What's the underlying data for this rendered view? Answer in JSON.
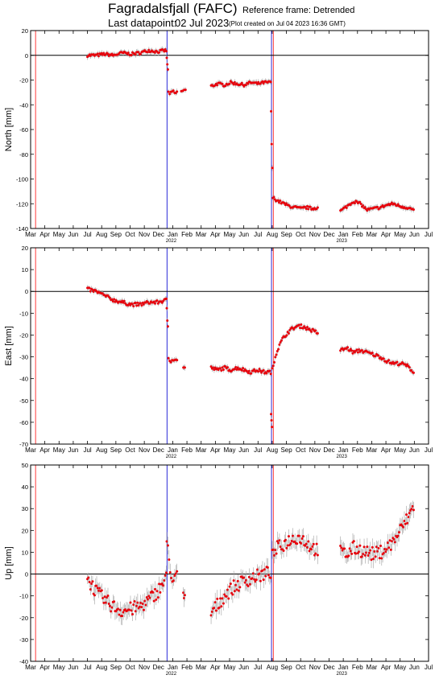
{
  "header": {
    "station_title": "Fagradalsfjall (FAFC)",
    "reference_frame": "Reference frame: Detrended",
    "last_datapoint_label": "Last datapoint:",
    "last_datapoint_value": "02 Jul 2023",
    "plot_created": "(Plot created on Jul 04 2023 16:36 GMT)"
  },
  "colors": {
    "points": "#e8000b",
    "error_bars": "#a0a0a0",
    "zero_line": "#000000",
    "red_marker": "#ff3b3b",
    "blue_marker": "#2a2ad8"
  },
  "chart_data": {
    "type": "scatter",
    "x_axis": {
      "months": [
        "Mar",
        "Apr",
        "May",
        "Jun",
        "Jul",
        "Aug",
        "Sep",
        "Oct",
        "Nov",
        "Dec",
        "Jan",
        "Feb",
        "Mar",
        "Apr",
        "May",
        "Jun",
        "Jul",
        "Aug",
        "Sep",
        "Oct",
        "Nov",
        "Dec",
        "Jan",
        "Feb",
        "Mar",
        "Apr",
        "May",
        "Jun",
        "Jul"
      ],
      "year_labels": [
        {
          "label": "2022",
          "month_index": 10
        },
        {
          "label": "2023",
          "month_index": 22
        }
      ]
    },
    "vertical_lines": [
      {
        "color": "red",
        "month_position": 0.35
      },
      {
        "color": "blue",
        "month_position": 9.6
      },
      {
        "color": "blue",
        "month_position": 16.95
      },
      {
        "color": "red",
        "month_position": 17.08
      }
    ],
    "panels": [
      {
        "id": "north",
        "ylabel": "North [mm]",
        "ylim": [
          -140,
          20
        ],
        "yticks": [
          20,
          0,
          -20,
          -40,
          -60,
          -80,
          -100,
          -120,
          -140
        ],
        "segments": [
          {
            "from": 4.0,
            "to": 9.55,
            "values": [
              0,
              0,
              1,
              0,
              2,
              1,
              2,
              4,
              3,
              4
            ]
          },
          {
            "from": 9.58,
            "to": 9.66,
            "values": [
              -3,
              -7,
              -12
            ]
          },
          {
            "from": 9.7,
            "to": 10.3,
            "values": [
              -30,
              -31,
              -29,
              -31,
              -30
            ]
          },
          {
            "from": 10.6,
            "to": 10.9,
            "values": [
              -29,
              -28
            ]
          },
          {
            "from": 12.7,
            "to": 16.9,
            "values": [
              -25,
              -23,
              -24,
              -22,
              -23,
              -24,
              -22,
              -23,
              -22,
              -22
            ]
          },
          {
            "from": 16.92,
            "to": 17.0,
            "values": [
              -45,
              -72,
              -92
            ]
          },
          {
            "from": 17.05,
            "to": 20.2,
            "values": [
              -115,
              -118,
              -120,
              -122,
              -123,
              -124,
              -123,
              -124,
              -123
            ]
          },
          {
            "from": 21.8,
            "to": 26.95,
            "values": [
              -126,
              -122,
              -118,
              -120,
              -125,
              -124,
              -123,
              -121,
              -120,
              -122,
              -123,
              -125
            ]
          }
        ]
      },
      {
        "id": "east",
        "ylabel": "East [mm]",
        "ylim": [
          -70,
          20
        ],
        "yticks": [
          20,
          10,
          0,
          -10,
          -20,
          -30,
          -40,
          -50,
          -60,
          -70
        ],
        "segments": [
          {
            "from": 4.0,
            "to": 9.55,
            "values": [
              1,
              0,
              -2,
              -4,
              -5,
              -6,
              -6,
              -5,
              -5,
              -4
            ]
          },
          {
            "from": 9.58,
            "to": 9.66,
            "values": [
              -8,
              -13,
              -16
            ]
          },
          {
            "from": 9.7,
            "to": 10.3,
            "values": [
              -30,
              -32,
              -31,
              -32,
              -31
            ]
          },
          {
            "from": 10.75,
            "to": 10.85,
            "values": [
              -35
            ]
          },
          {
            "from": 12.7,
            "to": 16.9,
            "values": [
              -35,
              -36,
              -35,
              -36,
              -35,
              -36,
              -37,
              -36,
              -37,
              -37
            ]
          },
          {
            "from": 16.92,
            "to": 16.98,
            "values": [
              -57,
              -62
            ]
          },
          {
            "from": 17.0,
            "to": 20.2,
            "values": [
              -35,
              -27,
              -22,
              -19,
              -17,
              -16,
              -16,
              -17,
              -18,
              -19
            ]
          },
          {
            "from": 21.8,
            "to": 26.95,
            "values": [
              -27,
              -26,
              -28,
              -27,
              -28,
              -29,
              -30,
              -32,
              -33,
              -33,
              -34,
              -37
            ]
          }
        ]
      },
      {
        "id": "up",
        "ylabel": "Up [mm]",
        "ylim": [
          -40,
          50
        ],
        "yticks": [
          50,
          40,
          30,
          20,
          10,
          0,
          -10,
          -20,
          -30,
          -40
        ],
        "segments": [
          {
            "from": 4.0,
            "to": 9.55,
            "values": [
              -2,
              -8,
              -12,
              -15,
              -17,
              -16,
              -15,
              -12,
              -8,
              -2
            ]
          },
          {
            "from": 9.58,
            "to": 10.3,
            "values": [
              15,
              10,
              0,
              -5,
              -3,
              0
            ]
          },
          {
            "from": 10.75,
            "to": 10.85,
            "values": [
              -11
            ]
          },
          {
            "from": 12.7,
            "to": 16.9,
            "values": [
              -18,
              -14,
              -10,
              -7,
              -5,
              -3,
              -2,
              -1,
              0,
              1
            ]
          },
          {
            "from": 17.0,
            "to": 20.2,
            "values": [
              8,
              12,
              13,
              15,
              16,
              17,
              16,
              14,
              12,
              11
            ]
          },
          {
            "from": 21.8,
            "to": 26.95,
            "values": [
              10,
              9,
              12,
              11,
              10,
              9,
              10,
              12,
              15,
              20,
              25,
              31
            ]
          }
        ]
      }
    ]
  }
}
